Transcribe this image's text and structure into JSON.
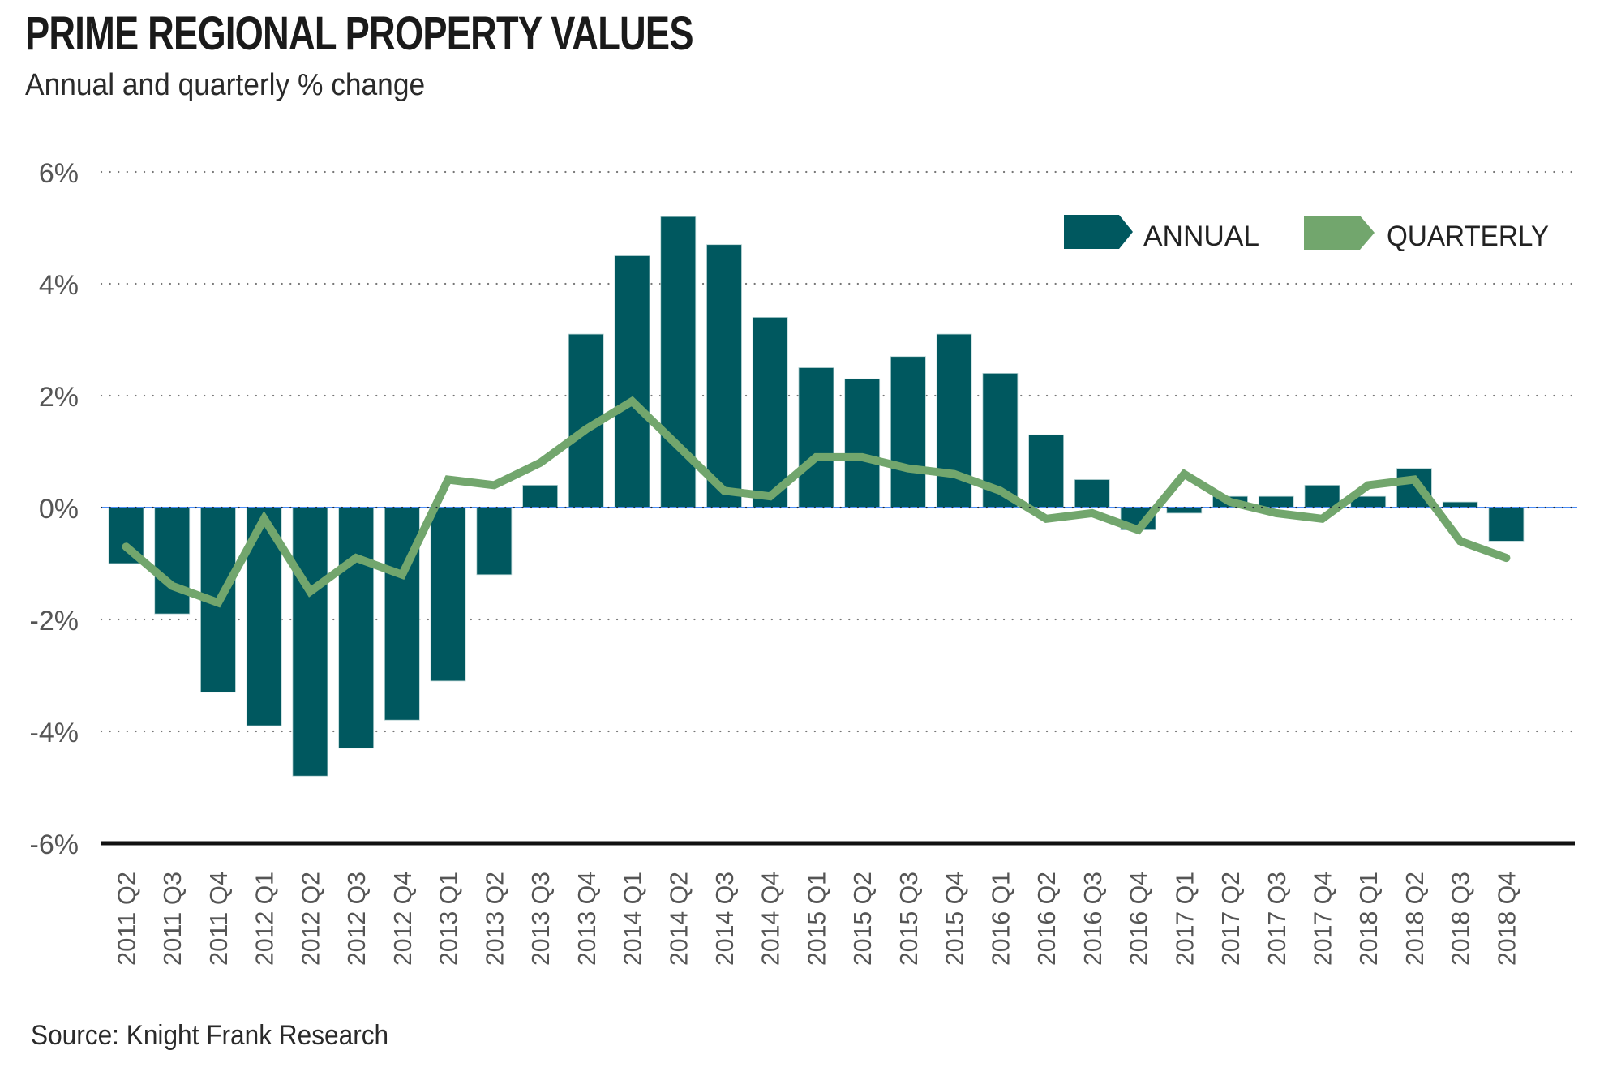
{
  "header": {
    "title": "PRIME REGIONAL PROPERTY VALUES",
    "subtitle": "Annual and quarterly % change"
  },
  "footer": {
    "source": "Source: Knight Frank Research"
  },
  "colors": {
    "annual": "#00585F",
    "quarterly": "#72A66D",
    "zero_line": "#4C8DF6",
    "axis_line": "#111111",
    "grid": "#777777"
  },
  "chart_data": {
    "type": "bar",
    "title": "PRIME REGIONAL PROPERTY VALUES",
    "subtitle": "Annual and quarterly % change",
    "xlabel": "",
    "ylabel": "",
    "ylim": [
      -6,
      6
    ],
    "yticks": [
      6,
      4,
      2,
      0,
      -2,
      -4,
      -6
    ],
    "ytick_labels": [
      "6%",
      "4%",
      "2%",
      "0%",
      "-2%",
      "-4%",
      "-6%"
    ],
    "grid": true,
    "legend_position": "top-right",
    "legend": [
      "ANNUAL",
      "QUARTERLY"
    ],
    "categories": [
      "2011 Q2",
      "2011 Q3",
      "2011 Q4",
      "2012 Q1",
      "2012 Q2",
      "2012 Q3",
      "2012 Q4",
      "2013 Q1",
      "2013 Q2",
      "2013 Q3",
      "2013 Q4",
      "2014 Q1",
      "2014 Q2",
      "2014 Q3",
      "2014 Q4",
      "2015 Q1",
      "2015 Q2",
      "2015 Q3",
      "2015 Q4",
      "2016 Q1",
      "2016 Q2",
      "2016 Q3",
      "2016 Q4",
      "2017 Q1",
      "2017 Q2",
      "2017 Q3",
      "2017 Q4",
      "2018 Q1",
      "2018 Q2",
      "2018 Q3",
      "2018 Q4"
    ],
    "series": [
      {
        "name": "ANNUAL",
        "type": "bar",
        "values": [
          -1.0,
          -1.9,
          -3.3,
          -3.9,
          -4.8,
          -4.3,
          -3.8,
          -3.1,
          -1.2,
          0.4,
          3.1,
          4.5,
          5.2,
          4.7,
          3.4,
          2.5,
          2.3,
          2.7,
          3.1,
          2.4,
          1.3,
          0.5,
          -0.4,
          -0.1,
          0.2,
          0.2,
          0.4,
          0.2,
          0.7,
          0.1,
          -0.6
        ]
      },
      {
        "name": "QUARTERLY",
        "type": "line",
        "values": [
          -0.7,
          -1.4,
          -1.7,
          -0.2,
          -1.5,
          -0.9,
          -1.2,
          0.5,
          0.4,
          0.8,
          1.4,
          1.9,
          1.1,
          0.3,
          0.2,
          0.9,
          0.9,
          0.7,
          0.6,
          0.3,
          -0.2,
          -0.1,
          -0.4,
          0.6,
          0.1,
          -0.1,
          -0.2,
          0.4,
          0.5,
          -0.6,
          -0.9
        ]
      }
    ]
  }
}
